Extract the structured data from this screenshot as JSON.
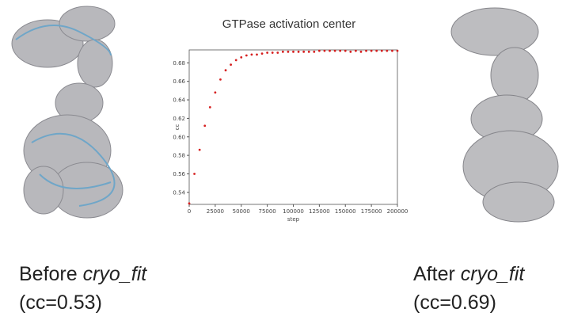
{
  "chart_data": {
    "type": "scatter",
    "title": "GTPase activation center",
    "xlabel": "step",
    "ylabel": "cc",
    "xlim": [
      0,
      200000
    ],
    "ylim": [
      0.527,
      0.694
    ],
    "xticks": [
      0,
      25000,
      50000,
      75000,
      100000,
      125000,
      150000,
      175000,
      200000
    ],
    "yticks": [
      0.54,
      0.56,
      0.58,
      0.6,
      0.62,
      0.64,
      0.66,
      0.68
    ],
    "ytick_labels": [
      "0.54",
      "0.56",
      "0.58",
      "0.60",
      "0.62",
      "0.64",
      "0.66",
      "0.68"
    ],
    "grid": false,
    "marker_color": "#d62020",
    "x": [
      0,
      5000,
      10000,
      15000,
      20000,
      25000,
      30000,
      35000,
      40000,
      45000,
      50000,
      55000,
      60000,
      65000,
      70000,
      75000,
      80000,
      85000,
      90000,
      95000,
      100000,
      105000,
      110000,
      115000,
      120000,
      125000,
      130000,
      135000,
      140000,
      145000,
      150000,
      155000,
      160000,
      165000,
      170000,
      175000,
      180000,
      185000,
      190000,
      195000,
      200000
    ],
    "y": [
      0.528,
      0.56,
      0.586,
      0.612,
      0.632,
      0.648,
      0.662,
      0.672,
      0.678,
      0.683,
      0.686,
      0.688,
      0.689,
      0.689,
      0.69,
      0.691,
      0.691,
      0.691,
      0.692,
      0.692,
      0.692,
      0.692,
      0.692,
      0.692,
      0.692,
      0.693,
      0.693,
      0.693,
      0.693,
      0.693,
      0.693,
      0.692,
      0.693,
      0.692,
      0.693,
      0.693,
      0.693,
      0.693,
      0.693,
      0.693,
      0.693
    ]
  },
  "captions": {
    "before_prefix": "Before ",
    "before_tool": "cryo_fit",
    "before_cc": "(cc=0.53)",
    "after_prefix": "After ",
    "after_tool": "cryo_fit",
    "after_cc": "(cc=0.69)"
  }
}
